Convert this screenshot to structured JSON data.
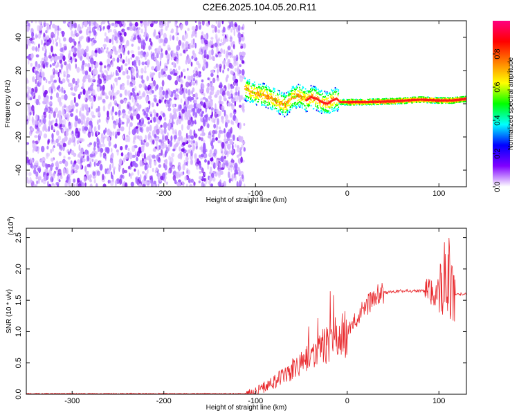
{
  "figure_title": "C2E6.2025.104.05.20.R11",
  "chart_data": [
    {
      "type": "heatmap",
      "title": "",
      "xlabel": "Height of straight line (km)",
      "ylabel": "Frequency (Hz)",
      "xlim": [
        -350,
        130
      ],
      "ylim": [
        -50,
        50
      ],
      "x_ticks": [
        -300,
        -200,
        -100,
        0,
        100
      ],
      "y_ticks": [
        -40,
        -20,
        0,
        20,
        40
      ],
      "noise_region_x": [
        -350,
        -112
      ],
      "ridge": {
        "x": [
          -112,
          -105,
          -98,
          -90,
          -82,
          -75,
          -68,
          -60,
          -52,
          -45,
          -40,
          -34,
          -28,
          -22,
          -17,
          -12,
          -8,
          0,
          20,
          50,
          80,
          100,
          115,
          130
        ],
        "y": [
          9,
          7,
          6,
          5,
          3,
          1,
          -1,
          4,
          5,
          2,
          4,
          3,
          1,
          0,
          2,
          3,
          1,
          1,
          1,
          1.5,
          2.5,
          2,
          2,
          3
        ]
      },
      "colorbar": {
        "label": "Normalized spectral amplitude",
        "range": [
          0,
          1
        ],
        "ticks": [
          0.0,
          0.2,
          0.4,
          0.6,
          0.8
        ],
        "tick_labels": [
          "0.0",
          "0.2",
          "0.4",
          "0.6",
          "0.8"
        ],
        "colors": [
          "#ffffff",
          "#8000ff",
          "#0000ff",
          "#00ffff",
          "#00ff00",
          "#ffff00",
          "#ff8000",
          "#ff0000",
          "#ff0080"
        ]
      }
    },
    {
      "type": "line",
      "title": "",
      "xlabel": "Height of straight line (km)",
      "ylabel": "SNR (10 * v/v)",
      "scale_label": "(x10",
      "scale_exp": "4",
      "xlim": [
        -350,
        130
      ],
      "ylim": [
        0,
        2.65
      ],
      "x_ticks": [
        -300,
        -200,
        -100,
        0,
        100
      ],
      "y_ticks": [
        0.0,
        0.5,
        1.0,
        1.5,
        2.0,
        2.5
      ],
      "y_tick_labels": [
        "0.0",
        "0.5",
        "1.0",
        "1.5",
        "2.0",
        "2.5"
      ],
      "series_color": "#e8262a",
      "envelope": {
        "x": [
          -350,
          -110,
          -100,
          -90,
          -80,
          -70,
          -60,
          -50,
          -40,
          -30,
          -20,
          -10,
          0,
          10,
          20,
          30,
          40,
          60,
          80,
          90,
          100,
          105,
          110,
          115,
          130
        ],
        "y": [
          0.01,
          0.01,
          0.05,
          0.12,
          0.2,
          0.28,
          0.38,
          0.5,
          0.62,
          0.72,
          0.8,
          0.88,
          0.98,
          1.2,
          1.4,
          1.55,
          1.62,
          1.65,
          1.65,
          1.63,
          1.62,
          1.6,
          1.6,
          1.6,
          1.6
        ]
      }
    }
  ]
}
